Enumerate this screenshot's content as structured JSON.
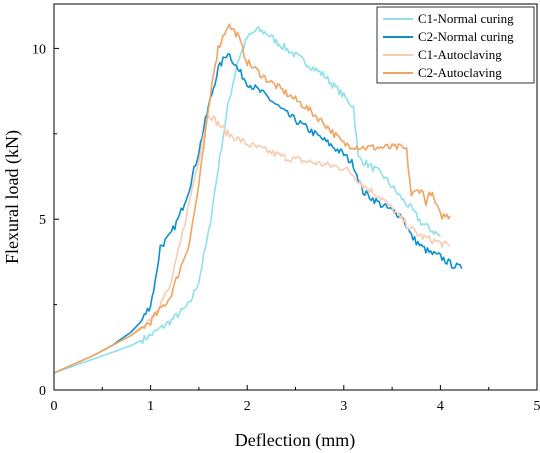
{
  "chart_data": {
    "type": "line",
    "xlabel": "Deflection (mm)",
    "ylabel": "Flexural load (kN)",
    "xlim": [
      0,
      5
    ],
    "ylim": [
      0,
      11.3
    ],
    "xticks": [
      "0",
      "1",
      "2",
      "3",
      "4",
      "5"
    ],
    "yticks": [
      "0",
      "5",
      "10"
    ],
    "grid": false,
    "legend_position": "top-right",
    "series": [
      {
        "name": "C1-Normal curing",
        "color": "#8fe0ea",
        "x": [
          0,
          0.2,
          0.4,
          0.6,
          0.8,
          1.0,
          1.2,
          1.4,
          1.5,
          1.6,
          1.7,
          1.8,
          1.9,
          2.0,
          2.1,
          2.15,
          2.2,
          2.3,
          2.4,
          2.6,
          2.8,
          3.0,
          3.1,
          3.15,
          3.2,
          3.4,
          3.6,
          3.7,
          3.8,
          3.9,
          4.0
        ],
        "y": [
          0.5,
          0.7,
          0.9,
          1.1,
          1.3,
          1.6,
          2.0,
          2.5,
          3.2,
          4.6,
          6.5,
          8.3,
          9.6,
          10.3,
          10.55,
          10.5,
          10.45,
          10.2,
          10.0,
          9.6,
          9.2,
          8.6,
          8.3,
          6.8,
          6.7,
          6.3,
          5.6,
          5.3,
          4.9,
          4.7,
          4.5
        ]
      },
      {
        "name": "C2-Normal curing",
        "color": "#0b8fcf",
        "x": [
          0,
          0.2,
          0.4,
          0.6,
          0.8,
          0.9,
          1.0,
          1.05,
          1.1,
          1.2,
          1.3,
          1.4,
          1.5,
          1.6,
          1.7,
          1.8,
          1.9,
          2.0,
          2.2,
          2.4,
          2.6,
          2.8,
          3.0,
          3.1,
          3.2,
          3.4,
          3.6,
          3.7,
          3.8,
          3.9,
          4.0,
          4.1,
          4.22
        ],
        "y": [
          0.5,
          0.75,
          1.0,
          1.3,
          1.7,
          2.0,
          2.5,
          3.2,
          4.2,
          4.5,
          5.1,
          5.9,
          7.0,
          8.3,
          9.4,
          9.9,
          9.4,
          9.0,
          8.6,
          8.1,
          7.7,
          7.3,
          6.9,
          6.6,
          5.8,
          5.4,
          5.1,
          4.5,
          4.2,
          4.0,
          3.9,
          3.7,
          3.55
        ]
      },
      {
        "name": "C1-Autoclaving",
        "color": "#f8ccb0",
        "x": [
          0,
          0.2,
          0.4,
          0.6,
          0.8,
          1.0,
          1.2,
          1.3,
          1.4,
          1.5,
          1.55,
          1.6,
          1.7,
          1.8,
          2.0,
          2.2,
          2.4,
          2.6,
          2.8,
          3.0,
          3.1,
          3.2,
          3.3,
          3.4,
          3.5,
          3.6,
          3.7,
          3.8,
          3.9,
          4.0,
          4.1
        ],
        "y": [
          0.5,
          0.75,
          1.0,
          1.3,
          1.6,
          2.1,
          3.0,
          4.2,
          5.5,
          6.8,
          7.5,
          8.1,
          7.8,
          7.5,
          7.2,
          7.0,
          6.8,
          6.7,
          6.6,
          6.5,
          6.3,
          6.0,
          5.8,
          5.6,
          5.3,
          5.0,
          4.7,
          4.5,
          4.4,
          4.3,
          4.2
        ]
      },
      {
        "name": "C2-Autoclaving",
        "color": "#f0a460",
        "x": [
          0,
          0.2,
          0.4,
          0.6,
          0.8,
          1.0,
          1.2,
          1.4,
          1.5,
          1.6,
          1.65,
          1.7,
          1.8,
          1.9,
          2.0,
          2.2,
          2.4,
          2.6,
          2.8,
          3.0,
          3.2,
          3.4,
          3.6,
          3.65,
          3.7,
          3.8,
          3.85,
          3.9,
          4.0,
          4.1
        ],
        "y": [
          0.5,
          0.75,
          1.0,
          1.3,
          1.6,
          2.0,
          2.7,
          4.3,
          6.0,
          8.2,
          9.3,
          10.0,
          10.7,
          10.4,
          9.6,
          9.1,
          8.7,
          8.3,
          7.8,
          7.2,
          7.1,
          7.1,
          7.1,
          7.0,
          5.7,
          5.9,
          5.5,
          5.8,
          5.1,
          5.1
        ]
      }
    ]
  }
}
